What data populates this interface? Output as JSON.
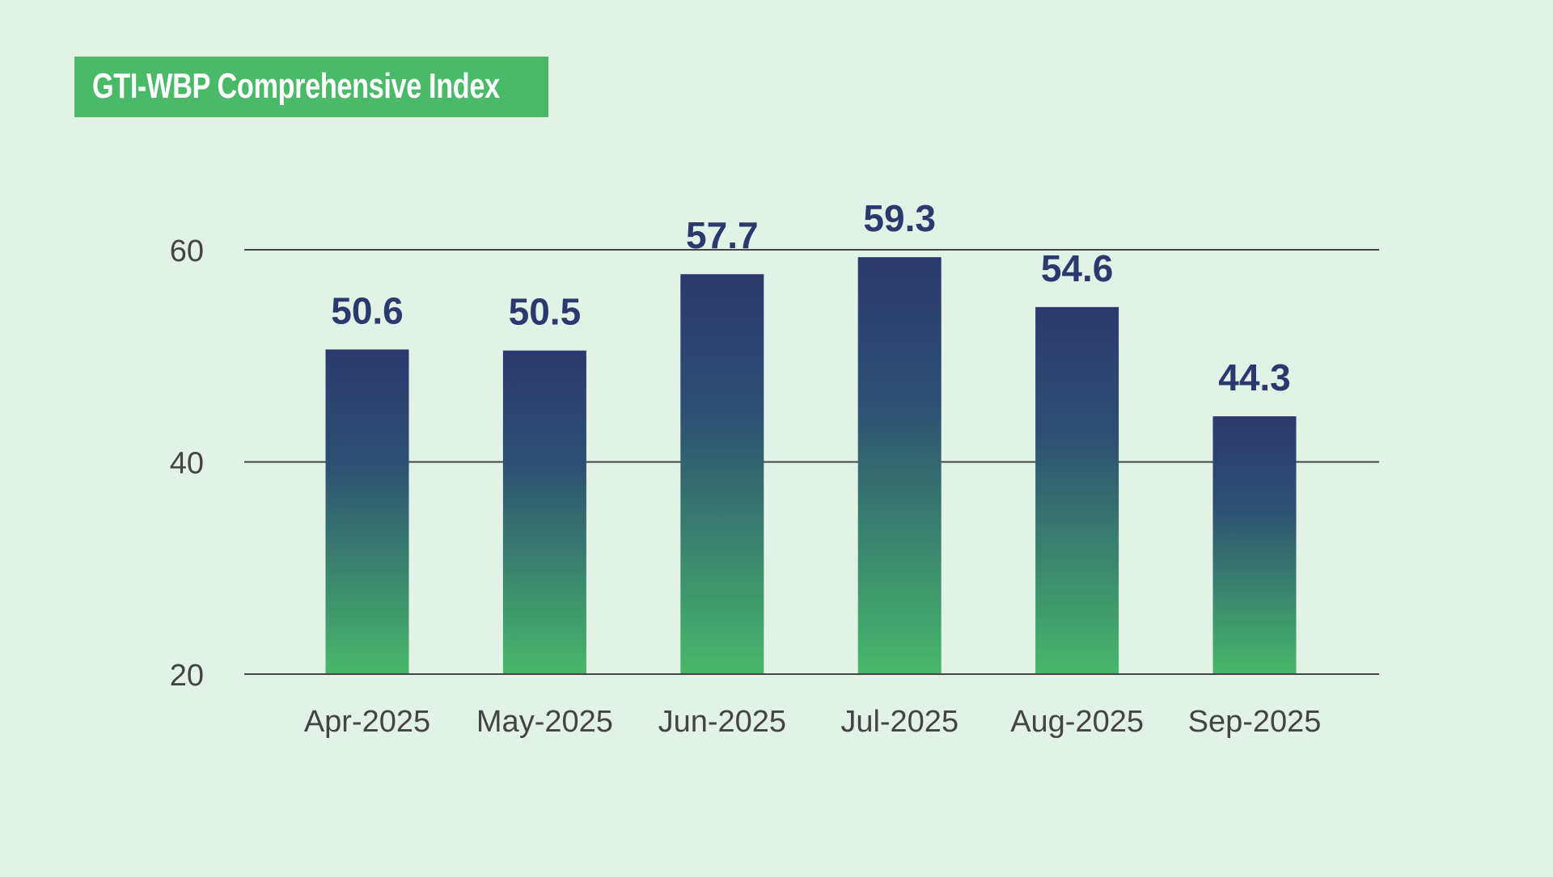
{
  "chart_data": {
    "type": "bar",
    "title": "GTI-WBP Comprehensive Index",
    "categories": [
      "Apr-2025",
      "May-2025",
      "Jun-2025",
      "Jul-2025",
      "Aug-2025",
      "Sep-2025"
    ],
    "values": [
      50.6,
      50.5,
      57.7,
      59.3,
      54.6,
      44.3
    ],
    "data_labels": [
      "50.6",
      "50.5",
      "57.7",
      "59.3",
      "54.6",
      "44.3"
    ],
    "xlabel": "",
    "ylabel": "",
    "ylim": [
      20,
      60
    ],
    "yticks": [
      "20",
      "40",
      "60"
    ],
    "grid": true,
    "colors": {
      "title_bg": "#4aba68",
      "bar_top": "#2b3a6e",
      "bar_bottom": "#47b86a",
      "label": "#2b3a6e",
      "background": "#e2f2e6"
    }
  }
}
